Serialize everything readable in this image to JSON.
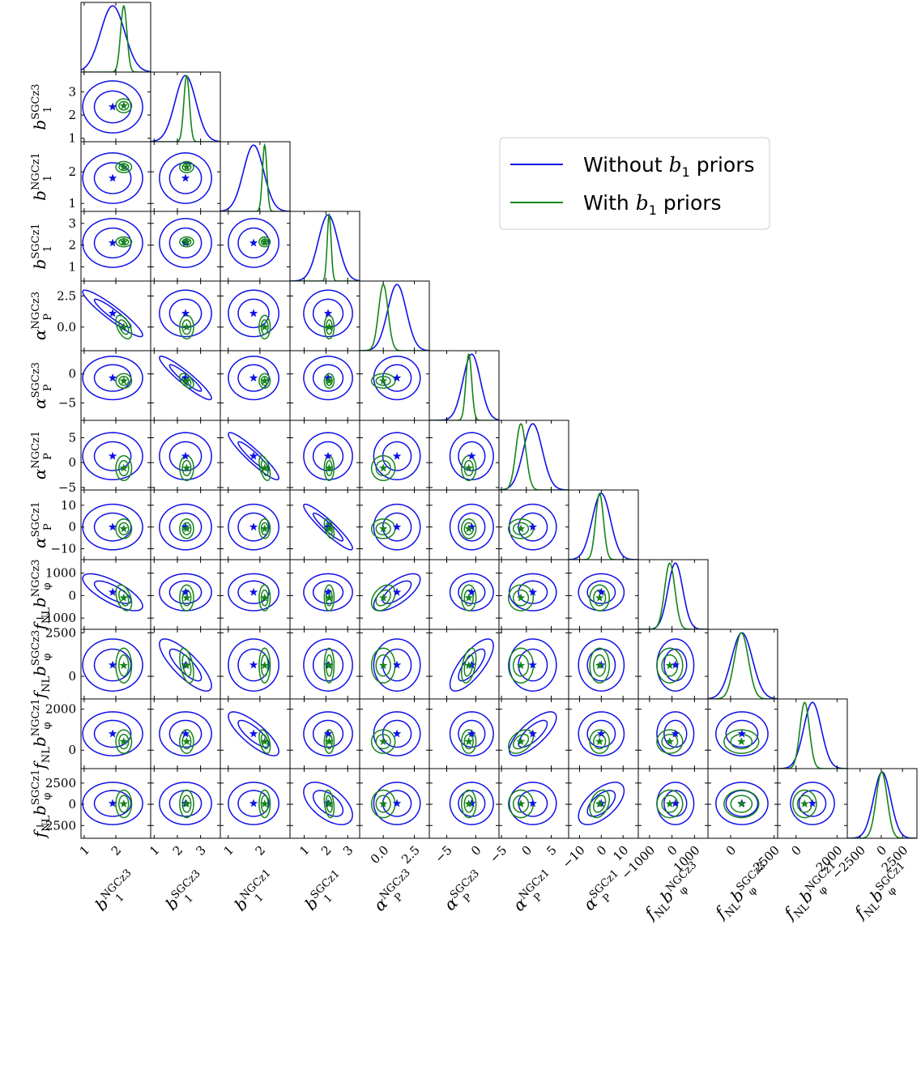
{
  "chart_data": {
    "type": "corner",
    "colors": {
      "without": "#1010e8",
      "with": "#15841a"
    },
    "legend": {
      "placement": "top-right",
      "entries": [
        {
          "label": "Without",
          "math": "b",
          "sub": "1",
          "tail": "priors",
          "color": "#1010e8"
        },
        {
          "label": "With",
          "math": "b",
          "sub": "1",
          "tail": "priors",
          "color": "#15841a"
        }
      ]
    },
    "parameters": [
      {
        "id": "b1_NGCz3",
        "symbol": "b",
        "sub": "1",
        "sup": "NGCz3",
        "range": [
          0.9,
          3.1
        ],
        "ticks": [
          1,
          2
        ],
        "tick_labels_x": [
          "1",
          "2"
        ],
        "tick_labels_y": [],
        "blue_mean": 1.9,
        "blue_sd": 0.38,
        "green_mean": 2.25,
        "green_sd": 0.1
      },
      {
        "id": "b1_SGCz3",
        "symbol": "b",
        "sub": "1",
        "sup": "SGCz3",
        "range": [
          0.85,
          3.85
        ],
        "ticks": [
          1,
          2,
          3
        ],
        "tick_labels_x": [
          "1",
          "2",
          "3"
        ],
        "tick_labels_y": [
          "1",
          "2",
          "3"
        ],
        "blue_mean": 2.35,
        "blue_sd": 0.45,
        "green_mean": 2.4,
        "green_sd": 0.12
      },
      {
        "id": "b1_NGCz1",
        "symbol": "b",
        "sub": "1",
        "sup": "NGCz1",
        "range": [
          0.75,
          2.95
        ],
        "ticks": [
          1,
          2
        ],
        "tick_labels_x": [
          "1",
          "2"
        ],
        "tick_labels_y": [
          "1",
          "2"
        ],
        "blue_mean": 1.8,
        "blue_sd": 0.32,
        "green_mean": 2.15,
        "green_sd": 0.07
      },
      {
        "id": "b1_SGCz1",
        "symbol": "b",
        "sub": "1",
        "sup": "SGCz1",
        "range": [
          0.35,
          3.55
        ],
        "ticks": [
          1,
          2,
          3
        ],
        "tick_labels_x": [
          "1",
          "2",
          "3"
        ],
        "tick_labels_y": [
          "1",
          "2",
          "3"
        ],
        "blue_mean": 2.1,
        "blue_sd": 0.45,
        "green_mean": 2.15,
        "green_sd": 0.09
      },
      {
        "id": "alphaP_NGCz3",
        "symbol": "α",
        "sub": "P",
        "sup": "NGCz3",
        "range": [
          -1.9,
          3.7
        ],
        "ticks": [
          0.0,
          2.5
        ],
        "tick_labels_x": [
          "0.0",
          "2.5"
        ],
        "tick_labels_y": [
          "0.0",
          "2.5"
        ],
        "blue_mean": 1.1,
        "blue_sd": 0.75,
        "green_mean": 0.0,
        "green_sd": 0.38
      },
      {
        "id": "alphaP_SGCz3",
        "symbol": "α",
        "sub": "P",
        "sup": "SGCz3",
        "range": [
          -8.0,
          4.0
        ],
        "ticks": [
          -5,
          0
        ],
        "tick_labels_x": [
          "−5",
          "0"
        ],
        "tick_labels_y": [
          "−5",
          "0"
        ],
        "blue_mean": -0.7,
        "blue_sd": 1.5,
        "green_mean": -1.2,
        "green_sd": 0.5
      },
      {
        "id": "alphaP_NGCz1",
        "symbol": "α",
        "sub": "P",
        "sup": "NGCz1",
        "range": [
          -5.5,
          8.5
        ],
        "ticks": [
          -5,
          0,
          5
        ],
        "tick_labels_x": [
          "−5",
          "0",
          "5"
        ],
        "tick_labels_y": [
          "−5",
          "0",
          "5"
        ],
        "blue_mean": 1.3,
        "blue_sd": 1.9,
        "green_mean": -1.1,
        "green_sd": 1.0
      },
      {
        "id": "alphaP_SGCz1",
        "symbol": "α",
        "sub": "P",
        "sup": "SGCz1",
        "range": [
          -15,
          17
        ],
        "ticks": [
          -10,
          0,
          10
        ],
        "tick_labels_x": [
          "−10",
          "0",
          "10"
        ],
        "tick_labels_y": [
          "−10",
          "0",
          "10"
        ],
        "blue_mean": 0.0,
        "blue_sd": 4.2,
        "green_mean": -0.8,
        "green_sd": 1.8
      },
      {
        "id": "fNLbphi_NGCz3",
        "symbol": "f",
        "sub": "NL",
        "sym2": "b",
        "sub2": "φ",
        "sup": "NGCz3",
        "range": [
          -1500,
          1600
        ],
        "ticks": [
          -1000,
          0,
          1000
        ],
        "tick_labels_x": [
          "−1000",
          "0",
          "1000"
        ],
        "tick_labels_y": [
          "−1000",
          "0",
          "1000"
        ],
        "blue_mean": 150,
        "blue_sd": 330,
        "green_mean": -100,
        "green_sd": 230
      },
      {
        "id": "fNLbphi_SGCz3",
        "symbol": "f",
        "sub": "NL",
        "sym2": "b",
        "sub2": "φ",
        "sup": "SGCz3",
        "range": [
          -1300,
          2700
        ],
        "ticks": [
          0,
          2500
        ],
        "tick_labels_x": [
          "0",
          "2500"
        ],
        "tick_labels_y": [
          "0",
          "2500"
        ],
        "blue_mean": 650,
        "blue_sd": 600,
        "green_mean": 620,
        "green_sd": 400
      },
      {
        "id": "fNLbphi_NGCz1",
        "symbol": "f",
        "sub": "NL",
        "sym2": "b",
        "sub2": "φ",
        "sup": "NGCz1",
        "range": [
          -900,
          2500
        ],
        "ticks": [
          0,
          2000
        ],
        "tick_labels_x": [
          "0",
          "2000"
        ],
        "tick_labels_y": [
          "0",
          "2000"
        ],
        "blue_mean": 800,
        "blue_sd": 430,
        "green_mean": 420,
        "green_sd": 230
      },
      {
        "id": "fNLbphi_SGCz1",
        "symbol": "f",
        "sub": "NL",
        "sym2": "b",
        "sub2": "φ",
        "sup": "SGCz1",
        "range": [
          -4000,
          4200
        ],
        "ticks": [
          -2500,
          0,
          2500
        ],
        "tick_labels_x": [
          "−2500",
          "0",
          "2500"
        ],
        "tick_labels_y": [
          "−2500",
          "0",
          "2500"
        ],
        "blue_mean": 100,
        "blue_sd": 1000,
        "green_mean": 50,
        "green_sd": 650
      }
    ],
    "correlations": [
      {
        "a": 4,
        "b": 0,
        "rho": -0.93
      },
      {
        "a": 5,
        "b": 1,
        "rho": -0.93
      },
      {
        "a": 6,
        "b": 2,
        "rho": -0.93
      },
      {
        "a": 7,
        "b": 3,
        "rho": -0.93
      },
      {
        "a": 8,
        "b": 0,
        "rho": -0.75
      },
      {
        "a": 8,
        "b": 4,
        "rho": 0.7
      },
      {
        "a": 9,
        "b": 1,
        "rho": -0.8
      },
      {
        "a": 9,
        "b": 5,
        "rho": 0.75
      },
      {
        "a": 10,
        "b": 2,
        "rho": -0.8
      },
      {
        "a": 10,
        "b": 6,
        "rho": 0.75
      },
      {
        "a": 11,
        "b": 3,
        "rho": -0.55
      },
      {
        "a": 11,
        "b": 7,
        "rho": 0.6
      }
    ]
  }
}
